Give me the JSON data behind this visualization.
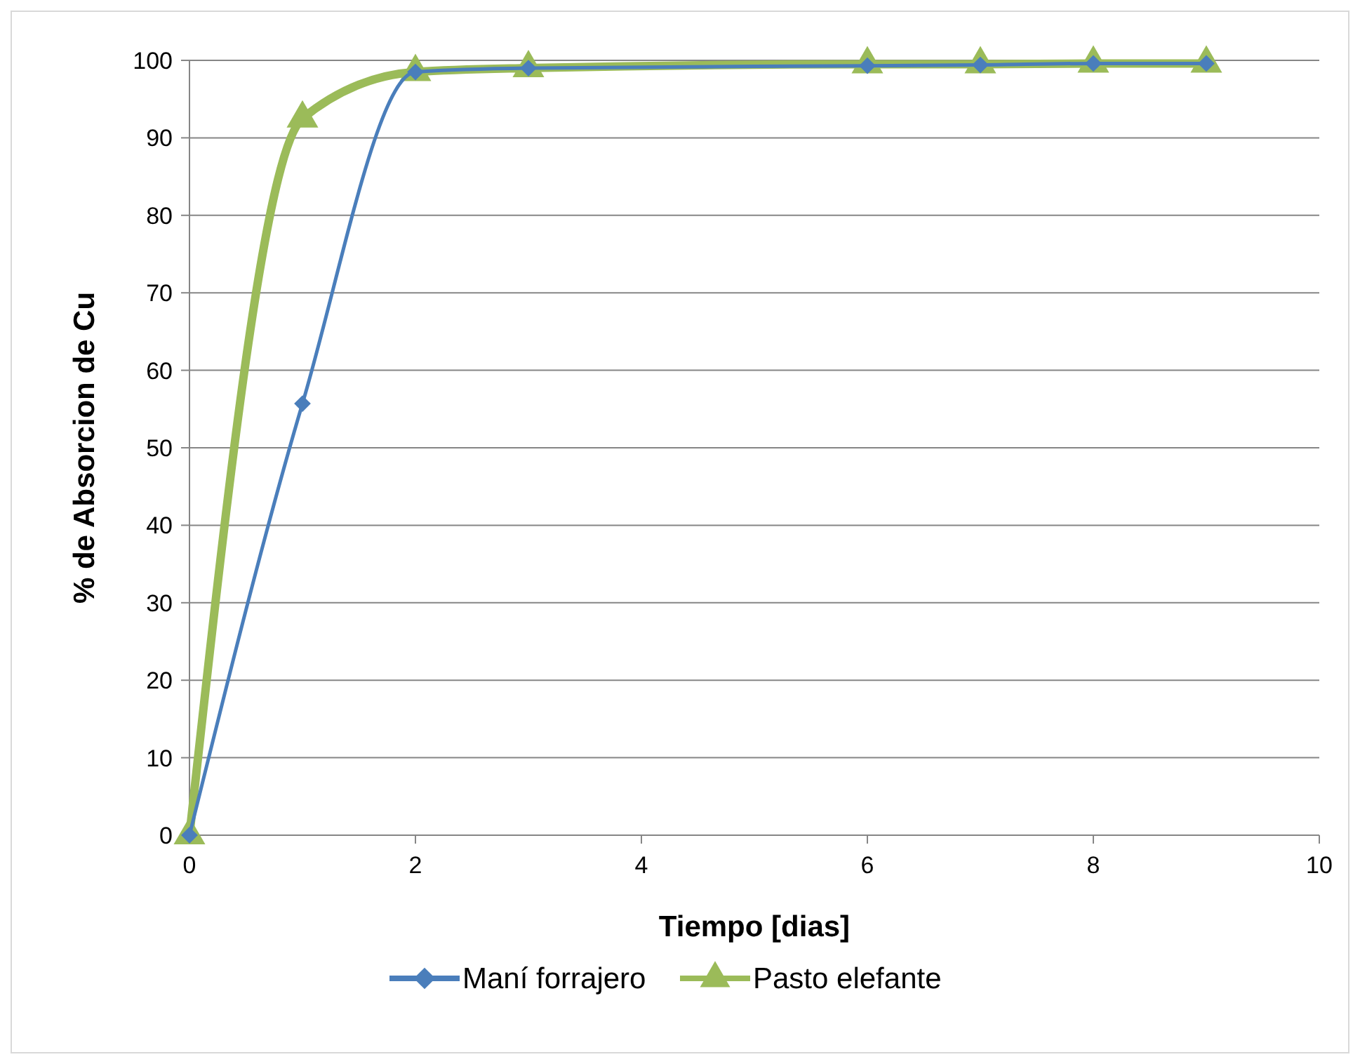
{
  "chart_data": {
    "type": "line",
    "xlabel": "Tiempo [dias]",
    "ylabel": "% de Absorcion de Cu",
    "xlim": [
      0,
      10
    ],
    "xticks": [
      0,
      2,
      4,
      6,
      8,
      10
    ],
    "ylim": [
      0,
      100
    ],
    "yticks": [
      0,
      10,
      20,
      30,
      40,
      50,
      60,
      70,
      80,
      90,
      100
    ],
    "grid": "y",
    "legend": "bottom",
    "series": [
      {
        "name": "Maní forrajero",
        "color": "#4a7ebb",
        "marker": "diamond",
        "x": [
          0,
          1,
          2,
          3,
          6,
          7,
          8,
          9
        ],
        "values": [
          0,
          55.7,
          98.5,
          99,
          99.3,
          99.4,
          99.6,
          99.6
        ]
      },
      {
        "name": "Pasto elefante",
        "color": "#9bbb59",
        "marker": "triangle",
        "x": [
          0,
          1,
          2,
          3,
          6,
          7,
          8,
          9
        ],
        "values": [
          0,
          92.5,
          98.5,
          99,
          99.5,
          99.5,
          99.6,
          99.6
        ]
      }
    ]
  }
}
